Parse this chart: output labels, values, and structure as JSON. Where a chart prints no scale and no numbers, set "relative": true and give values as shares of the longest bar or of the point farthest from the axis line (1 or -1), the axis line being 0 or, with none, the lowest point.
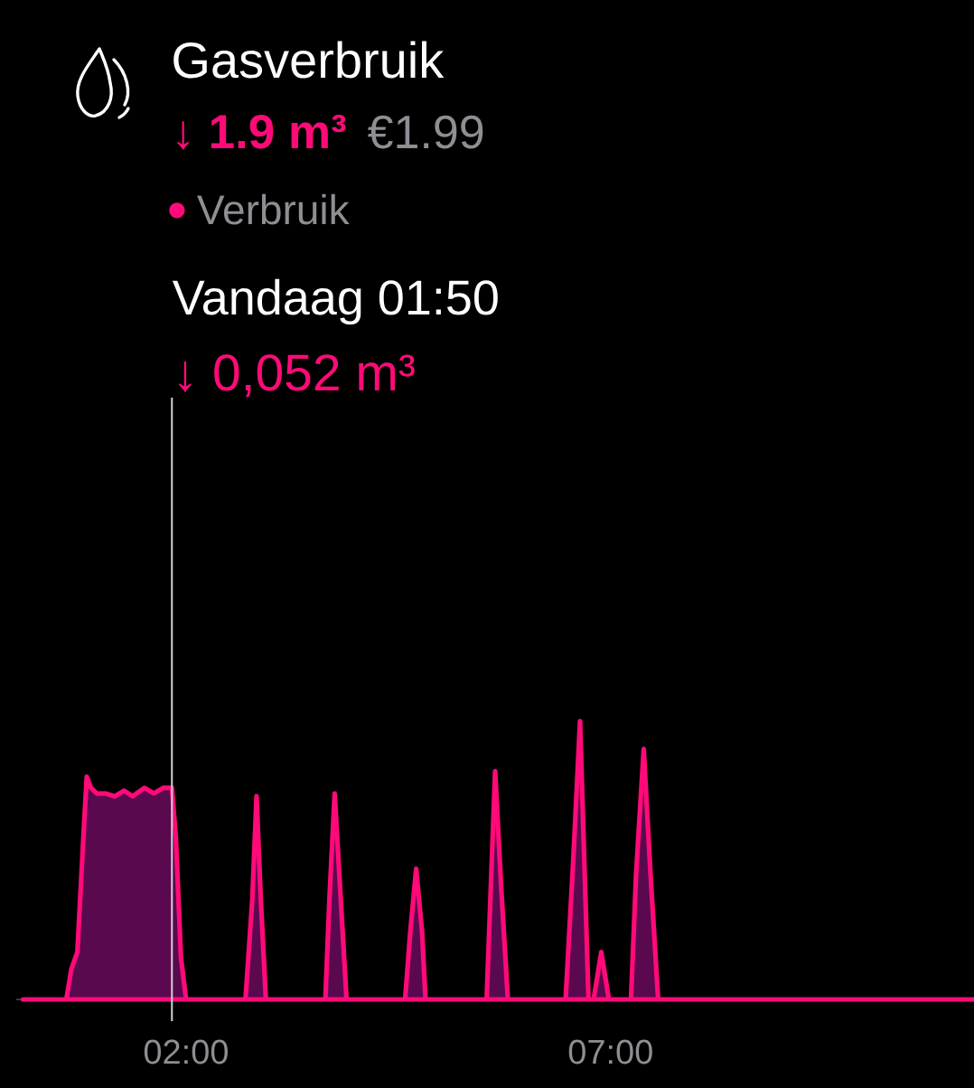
{
  "chart_data": {
    "type": "area",
    "title": "Gasverbruik",
    "subtitle": "↓ 1.9 m³",
    "annotations": [
      "€1.99",
      "Vandaag 01:50",
      "↓ 0,052 m³"
    ],
    "x": [
      0.08,
      0.59,
      0.65,
      0.72,
      0.79,
      0.83,
      0.88,
      0.95,
      1.05,
      1.16,
      1.27,
      1.37,
      1.51,
      1.62,
      1.73,
      1.8333,
      1.88,
      1.94,
      2.0,
      2.7,
      2.78,
      2.83,
      2.88,
      2.94,
      3.64,
      3.69,
      3.75,
      3.82,
      3.89,
      4.58,
      4.64,
      4.71,
      4.78,
      4.82,
      5.54,
      5.59,
      5.64,
      5.71,
      5.79,
      6.47,
      6.56,
      6.64,
      6.69,
      6.74,
      6.8,
      6.89,
      6.98,
      7.24,
      7.3,
      7.39,
      7.47,
      7.56,
      11.28
    ],
    "series": [
      {
        "name": "Verbruik",
        "color": "#ff0a78",
        "values": [
          0,
          0,
          0.11,
          0.17,
          0.58,
          0.8,
          0.76,
          0.74,
          0.74,
          0.73,
          0.75,
          0.73,
          0.76,
          0.74,
          0.76,
          0.76,
          0.58,
          0.15,
          0,
          0,
          0.36,
          0.73,
          0.36,
          0,
          0,
          0.37,
          0.74,
          0.37,
          0,
          0,
          0.24,
          0.47,
          0.24,
          0,
          0,
          0.41,
          0.82,
          0.41,
          0,
          0,
          0.5,
          1,
          0.5,
          0,
          0,
          0.17,
          0,
          0,
          0.45,
          0.9,
          0.45,
          0,
          0
        ]
      }
    ],
    "relative": true,
    "xlim": [
      0,
      11.28
    ],
    "xticks": [
      {
        "value": 2,
        "label": "02:00"
      },
      {
        "value": 7,
        "label": "07:00"
      }
    ],
    "legend": "top left",
    "ref_lines": [
      {
        "axis": "x",
        "value": 1.8333,
        "color": "#d1d1d6"
      }
    ]
  }
}
